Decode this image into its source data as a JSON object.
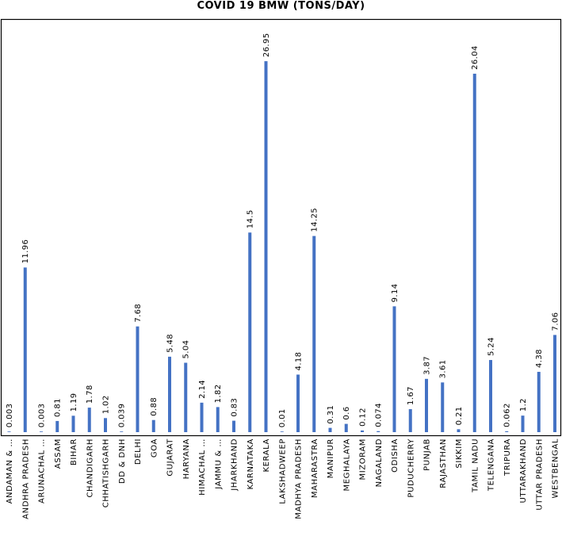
{
  "chart_data": {
    "type": "bar",
    "title": "COVID 19 BMW (TONS/DAY)",
    "xlabel": "",
    "ylabel": "",
    "ylim": [
      0,
      30
    ],
    "grid": false,
    "legend": "none",
    "bar_color": "#4472c4",
    "categories": [
      "ANDAMAN & …",
      "ANDHRA PRADESH",
      "ARUNACHAL …",
      "ASSAM",
      "BIHAR",
      "CHANDIGARH",
      "CHHATISHGARH",
      "DD & DNH",
      "DELHI",
      "GOA",
      "GUJARAT",
      "HARYANA",
      "HIMACHAL …",
      "JAMMU & …",
      "JHARKHAND",
      "KARNATAKA",
      "KERALA",
      "LAKSHADWEEP",
      "MADHYA PRADESH",
      "MAHARASTRA",
      "MANIPUR",
      "MEGHALAYA",
      "MIZORAM",
      "NAGALAND",
      "ODISHA",
      "PUDUCHERRY",
      "PUNJAB",
      "RAJASTHAN",
      "SIKKIM",
      "TAMIL NADU",
      "TELENGANA",
      "TRIPURA",
      "UTTARAKHAND",
      "UTTAR PRADESH",
      "WESTBENGAL"
    ],
    "values": [
      0.003,
      11.96,
      0.003,
      0.81,
      1.19,
      1.78,
      1.02,
      0.039,
      7.68,
      0.88,
      5.48,
      5.04,
      2.14,
      1.82,
      0.83,
      14.5,
      26.95,
      0.01,
      4.18,
      14.25,
      0.31,
      0.6,
      0.12,
      0.074,
      9.14,
      1.67,
      3.87,
      3.61,
      0.21,
      26.04,
      5.24,
      0.062,
      1.2,
      4.38,
      7.06
    ],
    "data_labels": [
      "0.003",
      "11.96",
      "0.003",
      "0.81",
      "1.19",
      "1.78",
      "1.02",
      "0.039",
      "7.68",
      "0.88",
      "5.48",
      "5.04",
      "2.14",
      "1.82",
      "0.83",
      "14.5",
      "26.95",
      "0.01",
      "4.18",
      "14.25",
      "0.31",
      "0.6",
      "0.12",
      "0.074",
      "9.14",
      "1.67",
      "3.87",
      "3.61",
      "0.21",
      "26.04",
      "5.24",
      "0.062",
      "1.2",
      "4.38",
      "7.06"
    ]
  }
}
